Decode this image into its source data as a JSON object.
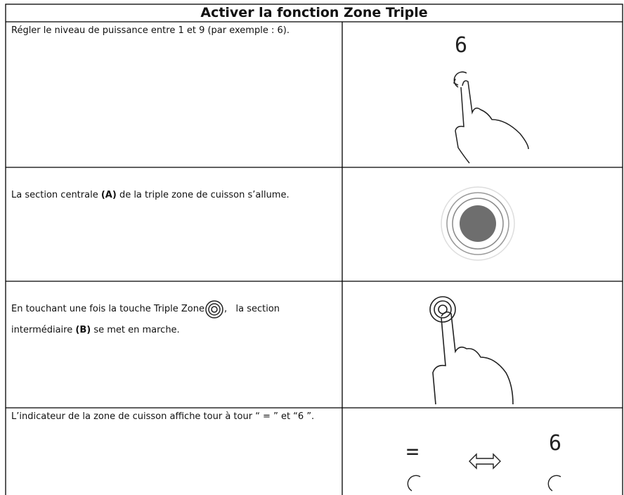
{
  "table": {
    "title": "Activer la fonction Zone Triple",
    "rows": [
      {
        "text": "Régler le niveau de puissance entre 1 et 9 (par exemple : 6).",
        "display": "6"
      },
      {
        "text": "La section centrale",
        "emphasis": "(A)",
        "text_end": "de la triple zone de cuisson s’allume."
      },
      {
        "text": "En touchant une fois la touche Triple Zone",
        "text_middle": ",   la section intermédiaire",
        "emphasis": "(B)",
        "text_end": "se met en marche."
      },
      {
        "text": "L’indicateur de la zone de cuisson affiche tour à tour “ = ” et “6 ”.",
        "display_left": "=",
        "display_right": "6"
      }
    ]
  }
}
